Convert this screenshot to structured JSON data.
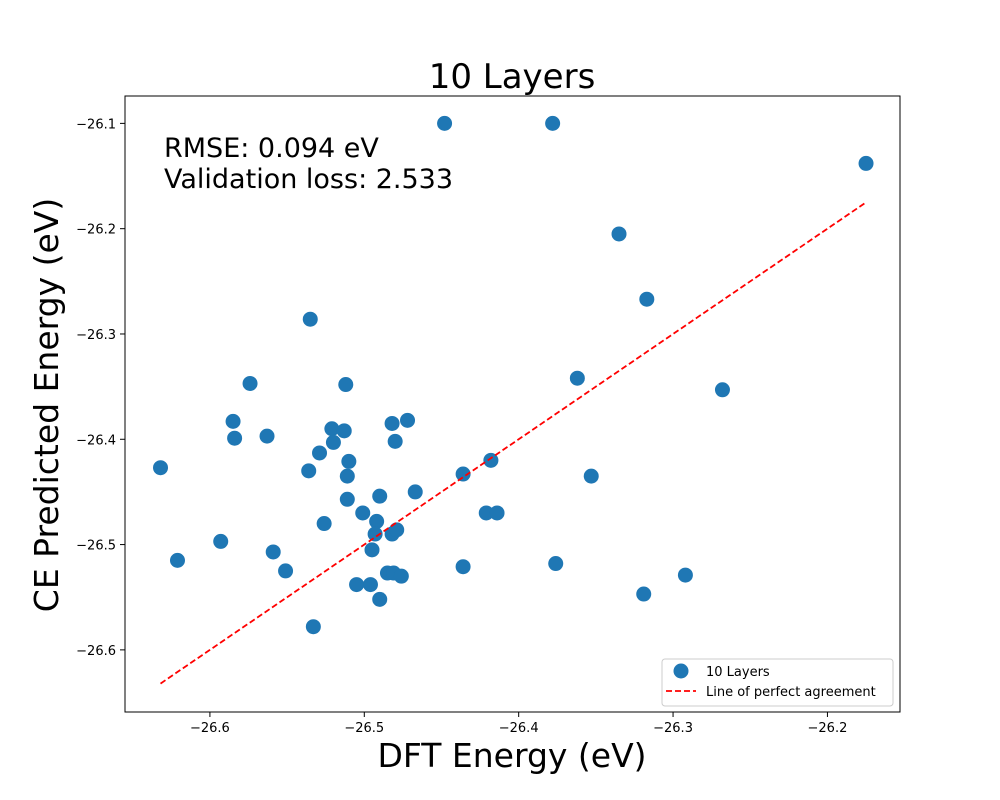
{
  "chart_data": {
    "type": "scatter",
    "title": "10 Layers",
    "xlabel": "DFT Energy (eV)",
    "ylabel": "CE Predicted Energy (eV)",
    "xlim": [
      -26.655,
      -26.153
    ],
    "ylim": [
      -26.659,
      -26.074
    ],
    "xticks": [
      -26.6,
      -26.5,
      -26.4,
      -26.3,
      -26.2
    ],
    "yticks": [
      -26.6,
      -26.5,
      -26.4,
      -26.3,
      -26.2,
      -26.1
    ],
    "xtick_labels": [
      "−26.6",
      "−26.5",
      "−26.4",
      "−26.3",
      "−26.2"
    ],
    "ytick_labels": [
      "−26.6",
      "−26.5",
      "−26.4",
      "−26.3",
      "−26.2",
      "−26.1"
    ],
    "grid": false,
    "legend_position": "lower-right",
    "annotations": [
      "RMSE: 0.094 eV",
      "Validation loss: 2.533"
    ],
    "series": [
      {
        "name": "10 Layers",
        "kind": "scatter",
        "color": "#1f77b4",
        "points": [
          [
            -26.448,
            -26.1
          ],
          [
            -26.378,
            -26.1
          ],
          [
            -26.175,
            -26.138
          ],
          [
            -26.335,
            -26.205
          ],
          [
            -26.317,
            -26.267
          ],
          [
            -26.535,
            -26.286
          ],
          [
            -26.574,
            -26.347
          ],
          [
            -26.512,
            -26.348
          ],
          [
            -26.362,
            -26.342
          ],
          [
            -26.268,
            -26.353
          ],
          [
            -26.585,
            -26.383
          ],
          [
            -26.584,
            -26.399
          ],
          [
            -26.563,
            -26.397
          ],
          [
            -26.632,
            -26.427
          ],
          [
            -26.536,
            -26.43
          ],
          [
            -26.529,
            -26.413
          ],
          [
            -26.521,
            -26.39
          ],
          [
            -26.52,
            -26.403
          ],
          [
            -26.513,
            -26.392
          ],
          [
            -26.51,
            -26.421
          ],
          [
            -26.511,
            -26.435
          ],
          [
            -26.511,
            -26.457
          ],
          [
            -26.482,
            -26.385
          ],
          [
            -26.472,
            -26.382
          ],
          [
            -26.48,
            -26.402
          ],
          [
            -26.436,
            -26.433
          ],
          [
            -26.418,
            -26.42
          ],
          [
            -26.353,
            -26.435
          ],
          [
            -26.467,
            -26.45
          ],
          [
            -26.49,
            -26.454
          ],
          [
            -26.501,
            -26.47
          ],
          [
            -26.492,
            -26.478
          ],
          [
            -26.421,
            -26.47
          ],
          [
            -26.414,
            -26.47
          ],
          [
            -26.526,
            -26.48
          ],
          [
            -26.493,
            -26.49
          ],
          [
            -26.482,
            -26.49
          ],
          [
            -26.479,
            -26.486
          ],
          [
            -26.495,
            -26.505
          ],
          [
            -26.593,
            -26.497
          ],
          [
            -26.621,
            -26.515
          ],
          [
            -26.559,
            -26.507
          ],
          [
            -26.551,
            -26.525
          ],
          [
            -26.485,
            -26.527
          ],
          [
            -26.481,
            -26.527
          ],
          [
            -26.476,
            -26.53
          ],
          [
            -26.505,
            -26.538
          ],
          [
            -26.496,
            -26.538
          ],
          [
            -26.49,
            -26.552
          ],
          [
            -26.436,
            -26.521
          ],
          [
            -26.376,
            -26.518
          ],
          [
            -26.292,
            -26.529
          ],
          [
            -26.319,
            -26.547
          ],
          [
            -26.533,
            -26.578
          ]
        ]
      },
      {
        "name": "Line of perfect agreement",
        "kind": "line",
        "style": "dashed",
        "color": "#ff0000",
        "points": [
          [
            -26.632,
            -26.632
          ],
          [
            -26.175,
            -26.175
          ]
        ]
      }
    ]
  }
}
